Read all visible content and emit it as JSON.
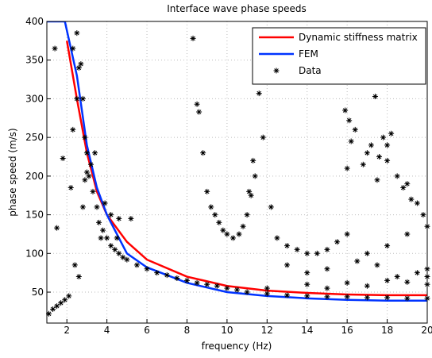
{
  "chart_data": {
    "type": "line",
    "title": "Interface wave phase speeds",
    "x_label": "frequency (Hz)",
    "y_label": "phase speed (m/s)",
    "xlim": [
      1,
      20
    ],
    "ylim": [
      10,
      400
    ],
    "xticks": [
      2,
      4,
      6,
      8,
      10,
      12,
      14,
      16,
      18,
      20
    ],
    "yticks": [
      50,
      100,
      150,
      200,
      250,
      300,
      350,
      400
    ],
    "grid": true,
    "legend": "upper right",
    "series": [
      {
        "name": "Dynamic stiffness matrix",
        "color": "#ff0000",
        "style": "line",
        "x": [
          2,
          2.5,
          3,
          3.5,
          4,
          5,
          6,
          8,
          10,
          12,
          14,
          16,
          18,
          20
        ],
        "values": [
          375,
          300,
          230,
          180,
          150,
          115,
          92,
          70,
          58,
          52,
          49,
          47,
          46,
          46
        ]
      },
      {
        "name": "FEM",
        "color": "#0033ff",
        "style": "line",
        "x": [
          1,
          1.9,
          2.5,
          3,
          3.5,
          4,
          5,
          6,
          8,
          10,
          12,
          14,
          16,
          18,
          20
        ],
        "values": [
          400,
          400,
          330,
          240,
          185,
          150,
          100,
          82,
          62,
          50,
          45,
          42,
          40,
          39,
          39
        ]
      },
      {
        "name": "Data",
        "color": "#000000",
        "style": "marker",
        "x": [
          1.1,
          1.3,
          1.5,
          1.7,
          1.9,
          2.1,
          2.4,
          2.6,
          1.5,
          1.8,
          1.4,
          2.2,
          2.3,
          2.5,
          2.3,
          2.5,
          2.6,
          2.7,
          2.8,
          2.9,
          3.0,
          3.1,
          3.2,
          2.9,
          2.8,
          3.3,
          3.5,
          3.6,
          3.8,
          4.0,
          4.2,
          4.4,
          4.6,
          4.8,
          5.0,
          3.4,
          3.0,
          3.9,
          4.2,
          4.6,
          5.2,
          4.5,
          3.7,
          5.5,
          6.0,
          6.5,
          7.0,
          7.5,
          8,
          8.5,
          9,
          9.5,
          10,
          10.5,
          11,
          12,
          13,
          14,
          15,
          16,
          17,
          18,
          19,
          20,
          8.3,
          8.5,
          8.6,
          8.8,
          9.0,
          9.2,
          9.4,
          9.6,
          9.8,
          10,
          10.3,
          10.6,
          10.8,
          11,
          11.2,
          11.4,
          11.6,
          11.3,
          11.8,
          11.1,
          12.2,
          12.5,
          13,
          13.5,
          14,
          14.5,
          15,
          15.5,
          16,
          17,
          18,
          19,
          20,
          17.5,
          16.5,
          15,
          14,
          13,
          15.9,
          16.1,
          16.2,
          16.4,
          16.7,
          17.0,
          17.2,
          17.4,
          17.6,
          17.8,
          18.0,
          18.2,
          18.5,
          18.8,
          19.2,
          19.5,
          19.8,
          16,
          16.8,
          17.5,
          18,
          19,
          12,
          14,
          16,
          18,
          20,
          15,
          17,
          19,
          20,
          20,
          19.5,
          18.5
        ],
        "values": [
          22,
          28,
          32,
          36,
          40,
          45,
          85,
          70,
          133,
          223,
          365,
          185,
          260,
          385,
          365,
          300,
          340,
          345,
          300,
          250,
          230,
          200,
          215,
          195,
          160,
          180,
          160,
          140,
          130,
          120,
          110,
          105,
          100,
          95,
          92,
          230,
          205,
          165,
          150,
          145,
          145,
          120,
          120,
          85,
          80,
          75,
          72,
          68,
          65,
          62,
          60,
          58,
          55,
          53,
          50,
          48,
          46,
          45,
          44,
          44,
          43,
          43,
          42,
          42,
          378,
          293,
          283,
          230,
          180,
          160,
          150,
          140,
          130,
          125,
          120,
          125,
          135,
          150,
          175,
          200,
          307,
          220,
          250,
          180,
          160,
          120,
          110,
          105,
          100,
          100,
          105,
          115,
          125,
          100,
          110,
          125,
          135,
          85,
          90,
          80,
          75,
          85,
          285,
          272,
          245,
          260,
          323,
          230,
          240,
          303,
          225,
          250,
          240,
          255,
          200,
          185,
          170,
          165,
          150,
          210,
          215,
          195,
          220,
          190,
          55,
          60,
          62,
          65,
          70,
          55,
          58,
          63,
          60,
          80,
          75,
          70
        ]
      }
    ]
  }
}
